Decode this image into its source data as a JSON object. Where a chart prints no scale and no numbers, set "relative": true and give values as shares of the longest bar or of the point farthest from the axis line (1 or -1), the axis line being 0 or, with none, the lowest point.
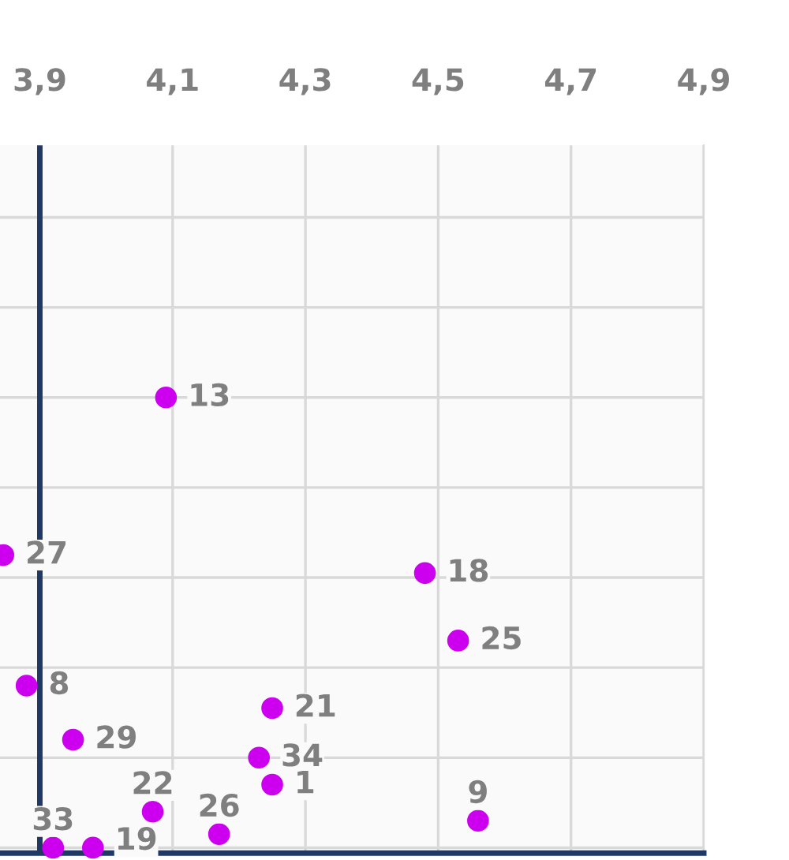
{
  "chart_data": {
    "type": "scatter",
    "relative": true,
    "marker": "circle",
    "grid": true,
    "tick_labels": "x",
    "xlim": [
      3.84,
      4.9
    ],
    "xticks": [
      {
        "value": 3.9,
        "label": "3,9"
      },
      {
        "value": 4.1,
        "label": "4,1"
      },
      {
        "value": 4.3,
        "label": "4,3"
      },
      {
        "value": 4.5,
        "label": "4,5"
      },
      {
        "value": 4.7,
        "label": "4,7"
      },
      {
        "value": 4.9,
        "label": "4,9"
      }
    ],
    "ref_lines": [
      {
        "axis": "x",
        "value": 3.9,
        "color": "#1f3864"
      }
    ],
    "series": [
      {
        "color": "#cc00ee",
        "x": [
          4.09,
          3.845,
          4.48,
          4.53,
          3.88,
          4.25,
          3.95,
          4.23,
          4.25,
          4.07,
          3.92,
          3.98,
          4.17,
          4.56
        ],
        "values": [
          1,
          0.65,
          0.61,
          0.46,
          0.36,
          0.31,
          0.24,
          0.2,
          0.14,
          0.08,
          0,
          0,
          0.03,
          0.06
        ]
      }
    ],
    "annotations": [
      {
        "text": "13",
        "x": 4.09,
        "y": 1
      },
      {
        "text": "27",
        "x": 3.845,
        "y": 0.65
      },
      {
        "text": "18",
        "x": 4.48,
        "y": 0.61
      },
      {
        "text": "25",
        "x": 4.53,
        "y": 0.46
      },
      {
        "text": "8",
        "x": 3.88,
        "y": 0.36
      },
      {
        "text": "21",
        "x": 4.25,
        "y": 0.31
      },
      {
        "text": "29",
        "x": 3.95,
        "y": 0.24
      },
      {
        "text": "34",
        "x": 4.23,
        "y": 0.2
      },
      {
        "text": "1",
        "x": 4.25,
        "y": 0.14
      },
      {
        "text": "22",
        "x": 4.07,
        "y": 0.08
      },
      {
        "text": "33",
        "x": 3.92,
        "y": 0
      },
      {
        "text": "19",
        "x": 3.98,
        "y": 0
      },
      {
        "text": "26",
        "x": 4.17,
        "y": 0.03
      },
      {
        "text": "9",
        "x": 4.56,
        "y": 0.06
      }
    ]
  }
}
